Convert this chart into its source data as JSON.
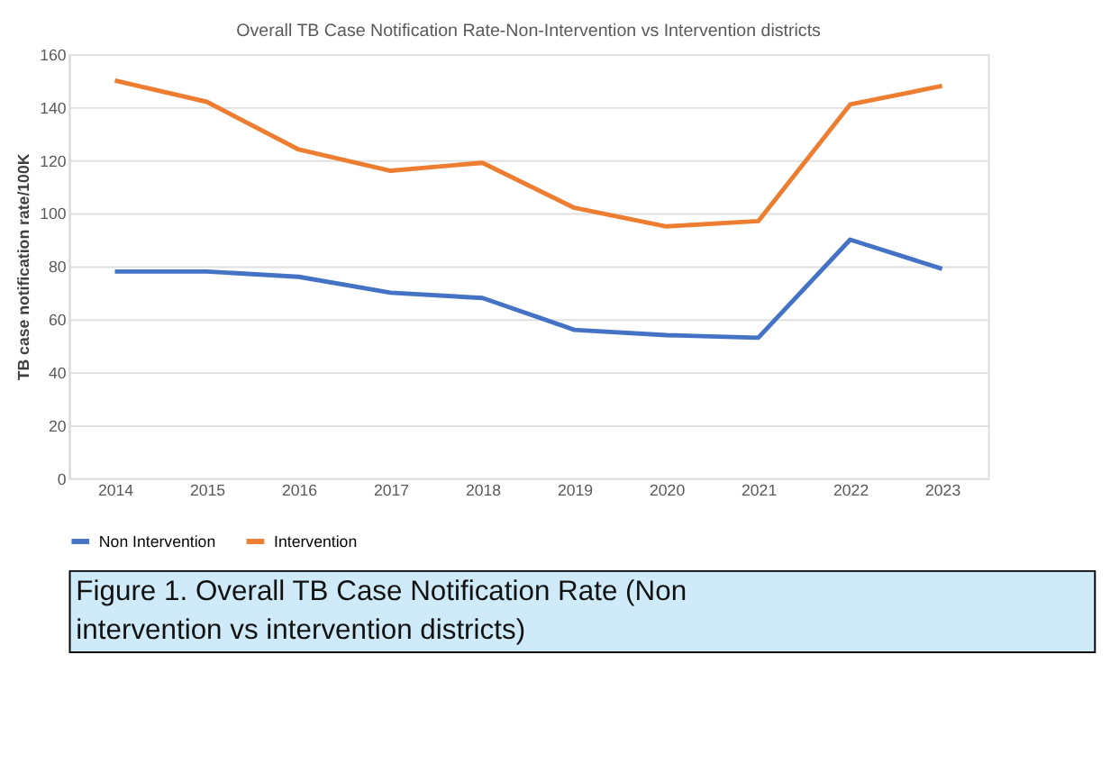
{
  "chart_data": {
    "type": "line",
    "title": "Overall TB Case Notification  Rate-Non-Intervention  vs Intervention  districts",
    "ylabel": "TB case notification  rate/100K",
    "categories": [
      "2014",
      "2015",
      "2016",
      "2017",
      "2018",
      "2019",
      "2020",
      "2021",
      "2022",
      "2023"
    ],
    "series": [
      {
        "name": "Non Intervention",
        "color": "#4472c4",
        "values": [
          78,
          78,
          76,
          70,
          68,
          56,
          54,
          53,
          90,
          79
        ]
      },
      {
        "name": "Intervention",
        "color": "#ed7d31",
        "values": [
          150,
          142,
          124,
          116,
          119,
          102,
          95,
          97,
          141,
          148
        ]
      }
    ],
    "ylim": [
      0,
      160
    ],
    "yticks": [
      0,
      20,
      40,
      60,
      80,
      100,
      120,
      140,
      160
    ],
    "grid": "y",
    "legend": "bottom",
    "marker": "none",
    "line_style": "solid",
    "annotations": [
      "Figure 1. Overall TB Case Notification Rate (Non intervention vs intervention districts)"
    ]
  }
}
